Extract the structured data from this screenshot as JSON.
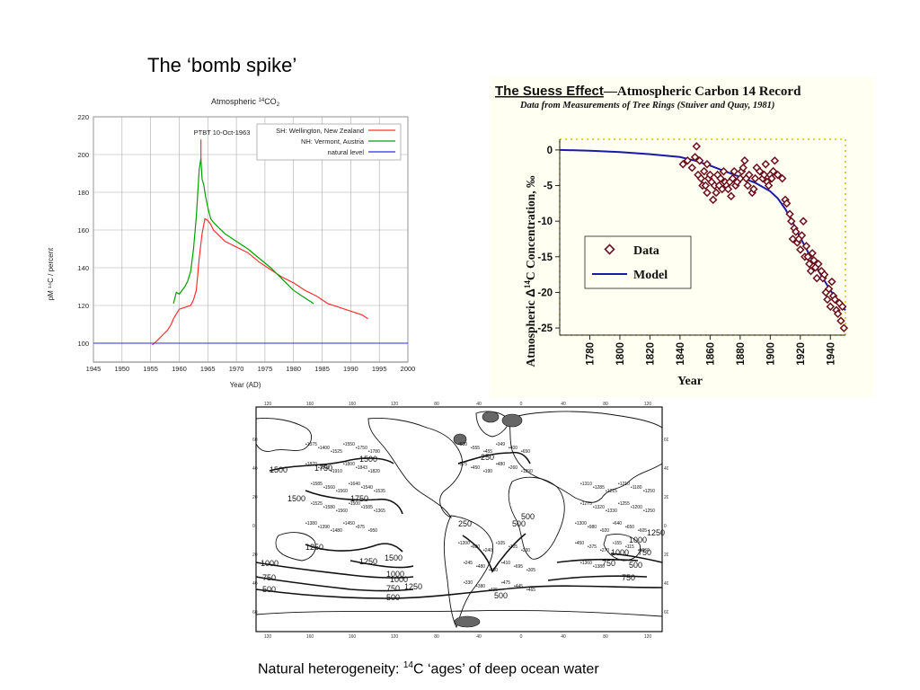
{
  "slide": {
    "title": "The ‘bomb spike’",
    "caption_prefix": "Natural heterogeneity: ",
    "caption_sup": "14",
    "caption_suffix": "C ‘ages’ of deep ocean water"
  },
  "chart_data": [
    {
      "id": "bomb",
      "type": "line",
      "title_main": "Atmospheric ",
      "title_sup": "14",
      "title_rest": "CO",
      "title_sub": "2",
      "xlabel": "Year (AD)",
      "ylabel": "pM ¹⁴C / percent",
      "xlim": [
        1945,
        2000
      ],
      "ylim": [
        90,
        220
      ],
      "xticks": [
        1945,
        1950,
        1955,
        1960,
        1965,
        1970,
        1975,
        1980,
        1985,
        1990,
        1995,
        2000
      ],
      "yticks": [
        100,
        120,
        140,
        160,
        180,
        200,
        220
      ],
      "grid": true,
      "legend_position": "top-right",
      "annotation": "PTBT 10-Oct-1963",
      "annotation_x": 1963.8,
      "colors": {
        "nz": "#ff3030",
        "vermont": "#00a000",
        "natural": "#2a2ae8"
      },
      "series": [
        {
          "name": "SH: Wellington, New Zealand",
          "key": "nz",
          "x": [
            1955.3,
            1956,
            1957,
            1958,
            1958.6,
            1959,
            1959.6,
            1960,
            1961,
            1962,
            1962.5,
            1963,
            1963.5,
            1964,
            1964.5,
            1965,
            1965.5,
            1966,
            1967,
            1968,
            1970,
            1972,
            1974,
            1976,
            1978,
            1980,
            1982,
            1984,
            1986,
            1988,
            1990,
            1992,
            1993
          ],
          "y": [
            99,
            101,
            104,
            107,
            110,
            113,
            116,
            118,
            119,
            120,
            123,
            128,
            145,
            158,
            166,
            165,
            163,
            160,
            157,
            154,
            151,
            148,
            143,
            139,
            135,
            132,
            128,
            125,
            121,
            119,
            117,
            115,
            113
          ]
        },
        {
          "name": "NH: Vermont, Austria",
          "key": "vermont",
          "x": [
            1959,
            1959.5,
            1960,
            1961,
            1961.5,
            1962,
            1962.5,
            1963,
            1963.5,
            1963.8,
            1964,
            1964.3,
            1964.6,
            1965,
            1965.5,
            1966,
            1967,
            1968,
            1970,
            1972,
            1974,
            1976,
            1978,
            1980,
            1982,
            1983.5
          ],
          "y": [
            121,
            127,
            126,
            130,
            133,
            138,
            150,
            167,
            192,
            198,
            187,
            184,
            178,
            172,
            166,
            164,
            161,
            158,
            154,
            150,
            145,
            140,
            134,
            128,
            124,
            121
          ]
        },
        {
          "name": "natural level",
          "key": "natural",
          "x": [
            1945,
            2000
          ],
          "y": [
            100,
            100
          ]
        }
      ]
    },
    {
      "id": "suess",
      "type": "scatter",
      "title_underline": "The Suess Effect",
      "title_dash": "—",
      "title_rest": "Atmospheric Carbon 14 Record",
      "subtitle": "Data from Measurements of Tree Rings (Stuiver and Quay, 1981)",
      "ylabel_pre": "Atmospheric ",
      "ylabel_delta": "Δ",
      "ylabel_sup": "14",
      "ylabel_post": "C Concentration, ‰",
      "xlabel": "Year",
      "xlim": [
        1760,
        1950
      ],
      "ylim": [
        -26,
        1.5
      ],
      "xticks": [
        1780,
        1800,
        1820,
        1840,
        1860,
        1880,
        1900,
        1920,
        1940
      ],
      "yticks": [
        0,
        -5,
        -10,
        -15,
        -20,
        -25
      ],
      "legend_position": "left-middle",
      "colors": {
        "data": "#6b0f1a",
        "model": "#1a1aa8",
        "frame_dots": "#e0c000",
        "background": "#fffff2"
      },
      "series": [
        {
          "name": "Data",
          "key": "data",
          "x": [
            1842,
            1845,
            1848,
            1850,
            1851,
            1852,
            1853,
            1854,
            1855,
            1856,
            1857,
            1858,
            1858,
            1859,
            1860,
            1861,
            1862,
            1863,
            1864,
            1865,
            1866,
            1867,
            1868,
            1869,
            1870,
            1871,
            1872,
            1873,
            1874,
            1875,
            1876,
            1877,
            1878,
            1880,
            1881,
            1882,
            1883,
            1884,
            1885,
            1886,
            1888,
            1889,
            1890,
            1891,
            1893,
            1895,
            1896,
            1897,
            1898,
            1899,
            1900,
            1901,
            1902,
            1903,
            1905,
            1908,
            1910,
            1911,
            1913,
            1914,
            1915,
            1916,
            1917,
            1918,
            1919,
            1920,
            1921,
            1922,
            1923,
            1924,
            1925,
            1926,
            1927,
            1928,
            1929,
            1930,
            1931,
            1932,
            1934,
            1935,
            1936,
            1937,
            1938,
            1939,
            1940,
            1941,
            1942,
            1943,
            1944,
            1945,
            1946,
            1947,
            1948,
            1949
          ],
          "y": [
            -2,
            -1.5,
            -2.5,
            -1,
            0.5,
            -3.5,
            -1.5,
            -4,
            -5,
            -3,
            -5,
            -6,
            -2,
            -4,
            -3.5,
            -4.5,
            -7,
            -5,
            -6,
            -3.5,
            -5,
            -4,
            -5.5,
            -3,
            -4.5,
            -5,
            -5.5,
            -4.5,
            -6.5,
            -4,
            -3,
            -5,
            -4.5,
            -4,
            -3,
            -2.5,
            -1.5,
            -4,
            -5,
            -3.5,
            -6,
            -5.5,
            -4,
            -2.5,
            -3,
            -4,
            -3.5,
            -2,
            -4.5,
            -5,
            -3.5,
            -4,
            -3,
            -1.5,
            -3.5,
            -4,
            -7,
            -7.5,
            -9,
            -10,
            -12.5,
            -11,
            -11.5,
            -13,
            -12.5,
            -14,
            -12,
            -10,
            -15,
            -13.5,
            -15,
            -16,
            -17,
            -14.5,
            -15.5,
            -16.5,
            -18,
            -16,
            -17,
            -18,
            -17.5,
            -20,
            -21,
            -19.5,
            -22,
            -18.5,
            -20.5,
            -21,
            -22.5,
            -23,
            -21.5,
            -24,
            -22,
            -25
          ]
        },
        {
          "name": "Model",
          "key": "model",
          "x": [
            1760,
            1780,
            1800,
            1820,
            1840,
            1850,
            1860,
            1870,
            1880,
            1890,
            1900,
            1905,
            1910,
            1915,
            1920,
            1925,
            1930,
            1935,
            1940,
            1945,
            1950
          ],
          "y": [
            0,
            -0.1,
            -0.3,
            -0.6,
            -1,
            -1.5,
            -2.2,
            -3,
            -3.8,
            -4.6,
            -5.8,
            -6.8,
            -8.3,
            -10.2,
            -12.3,
            -14.3,
            -16.2,
            -18,
            -19.7,
            -21.3,
            -22.5
          ]
        }
      ]
    }
  ],
  "map": {
    "top_scale": [
      "120",
      "160",
      "160",
      "120",
      "80",
      "40",
      "0",
      "40",
      "80",
      "120"
    ],
    "bottom_scale": [
      "120",
      "160",
      "160",
      "120",
      "80",
      "40",
      "0",
      "40",
      "80",
      "120"
    ],
    "left_scale": [
      "60",
      "40",
      "20",
      "0",
      "20",
      "40",
      "60"
    ],
    "right_scale": [
      "60",
      "40",
      "20",
      "0",
      "20",
      "40",
      "60"
    ],
    "contour_labels": [
      "1500",
      "1750",
      "1500",
      "1750",
      "1500",
      "1250",
      "1000",
      "750",
      "500",
      "1000",
      "1250",
      "1500",
      "1000",
      "750",
      "500",
      "250",
      "250",
      "500",
      "750",
      "1000",
      "1250",
      "500",
      "750",
      "500",
      "500",
      "1250",
      "1000",
      "750"
    ],
    "age_points": [
      "1375",
      "1400",
      "1525",
      "1550",
      "1750",
      "1780",
      "1870",
      "1890",
      "1910",
      "1800",
      "1843",
      "1820",
      "1585",
      "1560",
      "1560",
      "1640",
      "1540",
      "1535",
      "1525",
      "1580",
      "1560",
      "1500",
      "1585",
      "1365",
      "1380",
      "1390",
      "1480",
      "1450",
      "975",
      "950",
      "1200",
      "680",
      "240",
      "105",
      "105",
      "230",
      "245",
      "480",
      "450",
      "410",
      "695",
      "305",
      "330",
      "380",
      "495",
      "475",
      "445",
      "465",
      "630",
      "555",
      "455",
      "349",
      "400",
      "650",
      "575",
      "450",
      "190",
      "480",
      "260",
      "1290",
      "1310",
      "1285",
      "1215",
      "1210",
      "1180",
      "1250",
      "1275",
      "1320",
      "1330",
      "1255",
      "1200",
      "1250",
      "1300",
      "980",
      "920",
      "640",
      "650",
      "605",
      "450",
      "375",
      "270",
      "155",
      "115",
      "1660",
      "1360",
      "1380"
    ]
  }
}
